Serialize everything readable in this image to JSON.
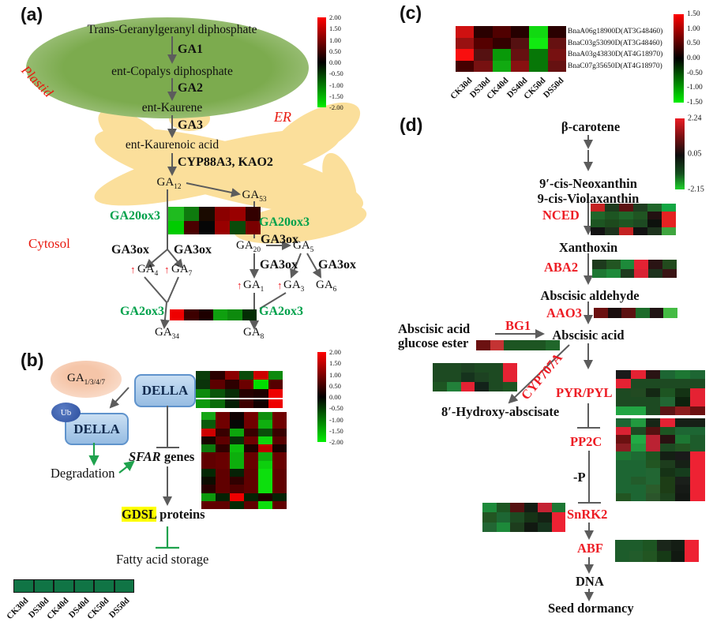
{
  "icons": {
    "up_arrow": "↑"
  },
  "heatmap_columns": [
    "CK30d",
    "DS30d",
    "CK40d",
    "DS40d",
    "CK50d",
    "DS50d"
  ],
  "panel_a": {
    "label": "(a)",
    "organelles": {
      "plastid": "Plastid",
      "er": "ER",
      "cytosol": "Cytosol"
    },
    "pathway": {
      "tggdp": "Trans-Geranylgeranyl diphosphate",
      "enz1": "GA1",
      "copalyl": "ent-Copalys diphosphate",
      "enz2": "GA2",
      "kaurene": "ent-Kaurene",
      "enz3": "GA3",
      "kaurenoic": "ent-Kaurenoic acid",
      "enz4": "CYP88A3, KAO2",
      "ga12": {
        "base": "GA",
        "sub": "12"
      },
      "ga53": {
        "base": "GA",
        "sub": "53"
      },
      "ga20": {
        "base": "GA",
        "sub": "20"
      },
      "ga5": {
        "base": "GA",
        "sub": "5"
      },
      "ga4": {
        "base": "GA",
        "sub": "4"
      },
      "ga7": {
        "base": "GA",
        "sub": "7"
      },
      "ga1": {
        "base": "GA",
        "sub": "1"
      },
      "ga3": {
        "base": "GA",
        "sub": "3"
      },
      "ga6": {
        "base": "GA",
        "sub": "6"
      },
      "ga34": {
        "base": "GA",
        "sub": "34"
      },
      "ga8": {
        "base": "GA",
        "sub": "8"
      },
      "ga3ox": "GA3ox",
      "ga20ox3": "GA20ox3",
      "ga2ox3": "GA2ox3"
    },
    "heatmap_ga20ox3": {
      "rows": [
        [
          "#1fbb1f",
          "#0e7a0e",
          "#1a0a00",
          "#8b0000",
          "#990000",
          "#330000"
        ],
        [
          "#00cc00",
          "#4a0000",
          "#060606",
          "#990000",
          "#0a4a0a",
          "#7a0000"
        ]
      ]
    },
    "heatmap_ga2ox3": {
      "rows": [
        [
          "#ee0000",
          "#3d0000",
          "#1d0000",
          "#0fa00f",
          "#0d8a0d",
          "#042d04"
        ]
      ]
    },
    "colorbar": {
      "labels": [
        "2.00",
        "1.50",
        "1.00",
        "0.50",
        "0.00",
        "-0.50",
        "-1.00",
        "-1.50",
        "-2.00"
      ]
    }
  },
  "panel_b": {
    "label": "(b)",
    "ga_ligand": {
      "base": "GA",
      "sub": "1/3/4/7"
    },
    "della": "DELLA",
    "ub": "Ub",
    "degradation": "Degradation",
    "sfar_italic": "SFAR",
    "sfar_rest": " genes",
    "gdsl": "GDSL",
    "gdsl_rest": " proteins",
    "fatty_acid": "Fatty acid storage",
    "heatmap_top": {
      "split_after": 3,
      "rows": [
        [
          "#0a3d0a",
          "#290000",
          "#8b0000",
          "#0a4a0a",
          "#cc0000",
          "#0d8a0d"
        ],
        [
          "#0a330a",
          "#5c0000",
          "#2d0000",
          "#6b0000",
          "#00dd00",
          "#550000"
        ],
        [
          "#0d8a0d",
          "#0a550a",
          "#072d07",
          "#260000",
          "#1d0000",
          "#ee0000"
        ],
        [
          "#0d990d",
          "#0a6b0a",
          "#041d04",
          "#3d0000",
          "#120000",
          "#ee0000"
        ]
      ]
    },
    "heatmap_sfar": {
      "rows": [
        [
          "#16a516",
          "#6e0000",
          "#100000",
          "#750000",
          "#0e8e0e",
          "#6e0000"
        ],
        [
          "#0a5a0a",
          "#700000",
          "#060606",
          "#700000",
          "#0faf0f",
          "#700000"
        ],
        [
          "#cf0000",
          "#380000",
          "#0da50d",
          "#380000",
          "#0a4f0a",
          "#380000"
        ],
        [
          "#180400",
          "#5e0000",
          "#083008",
          "#6e0000",
          "#0ed60e",
          "#580000"
        ],
        [
          "#0d7a0d",
          "#300000",
          "#0dbf0d",
          "#200000",
          "#bf0000",
          "#1a0000"
        ],
        [
          "#600000",
          "#680000",
          "#0daf0d",
          "#680000",
          "#0daf0d",
          "#680000"
        ],
        [
          "#600000",
          "#680000",
          "#0daf0d",
          "#680000",
          "#0dcf0d",
          "#680000"
        ],
        [
          "#042804",
          "#600000",
          "#062206",
          "#600000",
          "#0ddf0d",
          "#600000"
        ],
        [
          "#0c0c00",
          "#600000",
          "#300000",
          "#600000",
          "#0ddf0d",
          "#600000"
        ],
        [
          "#280000",
          "#600000",
          "#500000",
          "#600000",
          "#0ddf0d",
          "#600000"
        ],
        [
          "#0d990d",
          "#042204",
          "#ef0000",
          "#042204",
          "#200000",
          "#042204"
        ],
        [
          "#600000",
          "#600000",
          "#042a04",
          "#600000",
          "#0ddf0d",
          "#600000"
        ]
      ]
    },
    "legend_strip": {
      "rows": [
        [
          "#107445",
          "#107445",
          "#107445",
          "#107445",
          "#107445",
          "#107445"
        ]
      ]
    },
    "colorbar": {
      "labels": [
        "2.00",
        "1.50",
        "1.00",
        "0.50",
        "0.00",
        "-0.50",
        "-1.00",
        "-1.50",
        "-2.00"
      ]
    }
  },
  "panel_c": {
    "label": "(c)",
    "genes": [
      "BnaA06g18900D(AT3G48460)",
      "BnaC03g53090D(AT3G48460)",
      "BnaA03g43830D(AT4G18970)",
      "BnaC07g35650D(AT4G18970)"
    ],
    "heatmap": {
      "rows": [
        [
          "#cf1111",
          "#2a0000",
          "#500000",
          "#250000",
          "#11d911",
          "#2a0000"
        ],
        [
          "#991111",
          "#550000",
          "#330000",
          "#551111",
          "#11e911",
          "#661111"
        ],
        [
          "#f90f0f",
          "#551111",
          "#099909",
          "#661111",
          "#077707",
          "#771111"
        ],
        [
          "#440000",
          "#771111",
          "#11aa11",
          "#881111",
          "#077707",
          "#661111"
        ]
      ]
    },
    "colorbar": {
      "labels": [
        "1.50",
        "1.00",
        "0.50",
        "0.00",
        "-0.50",
        "-1.00",
        "-1.50"
      ]
    }
  },
  "panel_d": {
    "label": "(d)",
    "nodes": {
      "beta_carotene": "β-carotene",
      "neoxanthin": "9′-cis-Neoxanthin",
      "violaxanthin": "9-cis-Violaxanthin",
      "xanthoxin": "Xanthoxin",
      "aldehyde": "Abscisic aldehyde",
      "abscisic_acid": "Abscisic acid",
      "glucose_ester_l1": "Abscisic acid",
      "glucose_ester_l2": "glucose ester",
      "hydroxy": "8′-Hydroxy-abscisate",
      "minus_p": "-P",
      "dna": "DNA",
      "seed_dormancy": "Seed dormancy"
    },
    "enzymes": {
      "nced": "NCED",
      "aba2": "ABA2",
      "aao3": "AAO3",
      "bg1": "BG1",
      "cyp707a": "CYP707A",
      "pyr_pyl": "PYR/PYL",
      "pp2c": "PP2C",
      "snrk2": "SnRK2",
      "abf": "ABF"
    },
    "heatmap_nced": {
      "rows": [
        [
          "#c42222",
          "#1d3a1d",
          "#5c1111",
          "#1e3d20",
          "#20662a",
          "#13a743"
        ],
        [
          "#20662a",
          "#1d5522",
          "#20662a",
          "#205522",
          "#221111",
          "#e52222"
        ],
        [
          "#1d5522",
          "#1d4a1d",
          "#1d5522",
          "#1d4a22",
          "#0d120d",
          "#e52222"
        ],
        [
          "#131313",
          "#1d331d",
          "#c42222",
          "#121212",
          "#1d331d",
          "#3fa53f"
        ]
      ]
    },
    "heatmap_aba2": {
      "rows": [
        [
          "#1d3a1d",
          "#225522",
          "#1d8a3a",
          "#e52233",
          "#2a1414",
          "#224a1d"
        ],
        [
          "#1d7733",
          "#1d8a3a",
          "#1d3a1d",
          "#d92233",
          "#1d331d",
          "#3a1414"
        ]
      ]
    },
    "heatmap_aao3": {
      "rows": [
        [
          "#6b1111",
          "#1a0d0d",
          "#5c1111",
          "#1d6b2a",
          "#201414",
          "#44bb44"
        ]
      ]
    },
    "heatmap_bg1": {
      "rows": [
        [
          "#6b1111",
          "#c43333",
          "#1d5522",
          "#1d5522",
          "#1d5522",
          "#20662a"
        ]
      ]
    },
    "heatmap_cyp707a": {
      "rows": [
        [
          "#1d4a22",
          "#1d4a22",
          "#1d4222",
          "#1d4a22",
          "#1d4a22",
          "#e52233"
        ],
        [
          "#1d4a22",
          "#1d4a22",
          "#16331d",
          "#1d4222",
          "#1d4a22",
          "#e52233"
        ],
        [
          "#1d5522",
          "#22803a",
          "#e52233",
          "#13221a",
          "#1d4a22",
          "#1d5522"
        ]
      ]
    },
    "heatmap_pyrpyl": {
      "rows": [
        [
          "#1a1a1a",
          "#e52233",
          "#2a1414",
          "#1d6633",
          "#1d7733",
          "#1d6633"
        ],
        [
          "#e52233",
          "#1d4a22",
          "#1d4a22",
          "#1d4a22",
          "#1d4a22",
          "#1d4a22"
        ],
        [
          "#1d4a22",
          "#224a22",
          "#142814",
          "#1d5522",
          "#143314",
          "#e52233"
        ],
        [
          "#1d4a22",
          "#1d4a22",
          "#1d4a22",
          "#226633",
          "#0d220d",
          "#e52233"
        ],
        [
          "#22a543",
          "#22a543",
          "#1d4a22",
          "#5c1414",
          "#8b1d1d",
          "#6b1111"
        ]
      ]
    },
    "heatmap_pp2c": {
      "rows": [
        [
          "#1d6633",
          "#22993f",
          "#162616",
          "#e52233",
          "#162016",
          "#162016"
        ],
        [
          "#d92233",
          "#1d4a22",
          "#551111",
          "#1d5522",
          "#1d6633",
          "#1d6633"
        ],
        [
          "#6b1111",
          "#22aa44",
          "#bb2233",
          "#2a1111",
          "#1d7733",
          "#1d5c2b"
        ],
        [
          "#8b1d22",
          "#22993f",
          "#bb2233",
          "#1d4a22",
          "#225522",
          "#1d5c2b"
        ],
        [
          "#1d7733",
          "#1d6b33",
          "#1d5522",
          "#141f14",
          "#1a1a1a",
          "#ee2233"
        ],
        [
          "#1d6633",
          "#1d6633",
          "#225522",
          "#1d3d1d",
          "#162116",
          "#ee2233"
        ],
        [
          "#1d6633",
          "#1d6633",
          "#226633",
          "#163316",
          "#163d1d",
          "#ee2233"
        ],
        [
          "#1d6633",
          "#225c2b",
          "#226633",
          "#1d3d16",
          "#1a1f1a",
          "#ee2233"
        ],
        [
          "#1d6633",
          "#1d6633",
          "#2b5c2b",
          "#1d3d16",
          "#161a16",
          "#ee2233"
        ],
        [
          "#225522",
          "#1d6633",
          "#2b552b",
          "#1d421d",
          "#131713",
          "#ee2233"
        ]
      ]
    },
    "heatmap_snrk2": {
      "rows": [
        [
          "#1d8a3a",
          "#1d5522",
          "#551111",
          "#131d13",
          "#c42233",
          "#1d7733"
        ],
        [
          "#225522",
          "#1d6633",
          "#1d4a22",
          "#163316",
          "#142214",
          "#ee2233"
        ],
        [
          "#226633",
          "#1d8a3a",
          "#1d3d1d",
          "#111911",
          "#16331d",
          "#ee2233"
        ]
      ]
    },
    "heatmap_abf": {
      "rows": [
        [
          "#1d5c2b",
          "#1d5c2b",
          "#1d5522",
          "#1a261a",
          "#141d14",
          "#ee2233"
        ],
        [
          "#1d5c2b",
          "#225c2b",
          "#225522",
          "#163a16",
          "#111911",
          "#ee2233"
        ]
      ]
    },
    "colorbar": {
      "labels": [
        "2.24",
        "0.05",
        "-2.15"
      ]
    }
  }
}
